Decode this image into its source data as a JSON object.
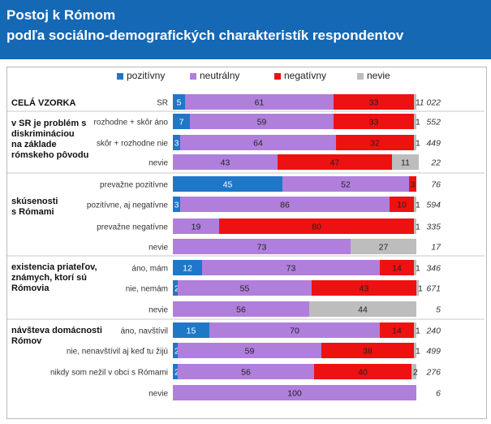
{
  "header": {
    "line1": "Postoj k Rómom",
    "line2": "podľa sociálno-demografických charakteristík respondentov"
  },
  "colors": {
    "header_bg": "#1568b4",
    "pozitivny": "#1f77c8",
    "neutralny": "#b07fdc",
    "negativny": "#ee1111",
    "nevie": "#bdbdbd"
  },
  "legend": [
    {
      "key": "pozitivny",
      "label": "pozitívny"
    },
    {
      "key": "neutralny",
      "label": "neutrálny"
    },
    {
      "key": "negativny",
      "label": "negatívny"
    },
    {
      "key": "nevie",
      "label": "nevie"
    }
  ],
  "chart_data": {
    "type": "bar",
    "stacked": true,
    "orientation": "horizontal",
    "xlim": [
      0,
      100
    ],
    "series_keys": [
      "pozitivny",
      "neutralny",
      "negativny",
      "nevie"
    ],
    "groups": [
      {
        "label_lines": [
          "CELÁ VZORKA"
        ],
        "rows": [
          {
            "label": "SR",
            "values": [
              5,
              61,
              33,
              1
            ],
            "n": "1 022"
          }
        ]
      },
      {
        "label_lines": [
          "v SR je problém s",
          "diskrimináciou",
          "na základe",
          "rómskeho pôvodu"
        ],
        "rows": [
          {
            "label": "rozhodne + skôr áno",
            "values": [
              7,
              59,
              33,
              1
            ],
            "n": "552"
          },
          {
            "label": "skôr + rozhodne nie",
            "values": [
              3,
              64,
              32,
              1
            ],
            "n": "449"
          },
          {
            "label": "nevie",
            "values": [
              0,
              43,
              47,
              11
            ],
            "n": "22"
          }
        ]
      },
      {
        "label_lines": [
          "skúsenosti",
          "s Rómami"
        ],
        "rows": [
          {
            "label": "prevažne pozitívne",
            "values": [
              45,
              52,
              3,
              0
            ],
            "n": "76"
          },
          {
            "label": "pozitívne, aj negatívne",
            "values": [
              3,
              86,
              10,
              1
            ],
            "n": "594"
          },
          {
            "label": "prevažne negatívne",
            "values": [
              0,
              19,
              80,
              1
            ],
            "n": "335"
          },
          {
            "label": "nevie",
            "values": [
              0,
              73,
              0,
              27
            ],
            "n": "17"
          }
        ]
      },
      {
        "label_lines": [
          "existencia priateľov,",
          "známych, ktorí sú",
          "Rómovia"
        ],
        "rows": [
          {
            "label": "áno, mám",
            "values": [
              12,
              73,
              14,
              1
            ],
            "n": "346"
          },
          {
            "label": "nie, nemám",
            "values": [
              2,
              55,
              43,
              1
            ],
            "n": "671"
          },
          {
            "label": "nevie",
            "values": [
              0,
              56,
              0,
              44
            ],
            "n": "5"
          }
        ]
      },
      {
        "label_lines": [
          "návšteva domácnosti",
          "Rómov"
        ],
        "rows": [
          {
            "label": "áno, navštívil",
            "values": [
              15,
              70,
              14,
              1
            ],
            "n": "240"
          },
          {
            "label": "nie, nenavštívil aj keď tu žijú",
            "values": [
              2,
              59,
              38,
              1
            ],
            "n": "499"
          },
          {
            "label": "nikdy som nežil v obci s Rómami",
            "values": [
              2,
              56,
              40,
              2
            ],
            "n": "276"
          },
          {
            "label": "nevie",
            "values": [
              0,
              100,
              0,
              0
            ],
            "n": "6"
          }
        ]
      }
    ]
  }
}
